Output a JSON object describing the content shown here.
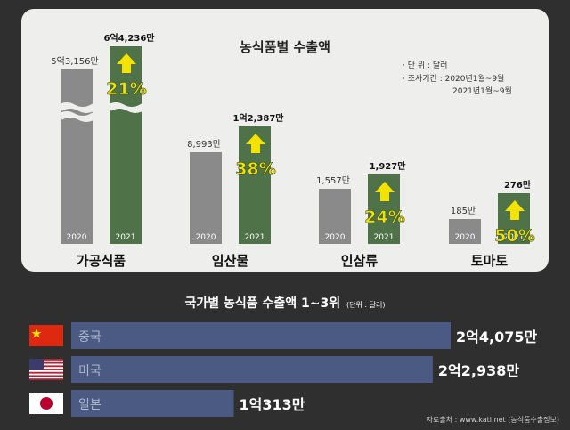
{
  "colors": {
    "gray_bar": "#8a8a8a",
    "green_bar": "#4f7248",
    "navy_bar": "#4b5a82",
    "arrow_yellow": "#f4e200",
    "background": "#2f2f2f",
    "panel": "#eeeeec"
  },
  "chart_data": [
    {
      "type": "bar",
      "title": "농식품별 수출액",
      "notes": [
        "· 단      위 : 달러",
        "· 조사기간 : 2020년1월~9월",
        "2021년1월~9월"
      ],
      "categories": [
        "가공식품",
        "임산물",
        "인삼류",
        "토마토"
      ],
      "x_labels": [
        "2020",
        "2021"
      ],
      "series": [
        {
          "name": "2020",
          "values": [
            531560000,
            89930000,
            15570000,
            1850000
          ],
          "labels": [
            "5억3,156만",
            "8,993만",
            "1,557만",
            "185만"
          ]
        },
        {
          "name": "2021",
          "values": [
            642360000,
            123870000,
            19270000,
            2760000
          ],
          "labels": [
            "6억4,236만",
            "1억2,387만",
            "1,927만",
            "276만"
          ]
        }
      ],
      "growth_labels": [
        "21%",
        "38%",
        "24%",
        "50%"
      ],
      "icons": [
        "up-arrow-icon",
        "axis-break-icon"
      ]
    },
    {
      "type": "bar",
      "orientation": "horizontal",
      "title": "국가별 농식품 수출액 1~3위",
      "unit_note": "(단위 : 달러)",
      "categories": [
        "중국",
        "미국",
        "일본"
      ],
      "flags": [
        "china-flag-icon",
        "usa-flag-icon",
        "japan-flag-icon"
      ],
      "values": [
        240750000,
        229380000,
        103130000
      ],
      "labels": [
        "2억4,075만",
        "2억2,938만",
        "1억313만"
      ],
      "xlim": [
        0,
        240750000
      ]
    }
  ],
  "source": "자료출처 : www.kati.net (농식품수출정보)"
}
